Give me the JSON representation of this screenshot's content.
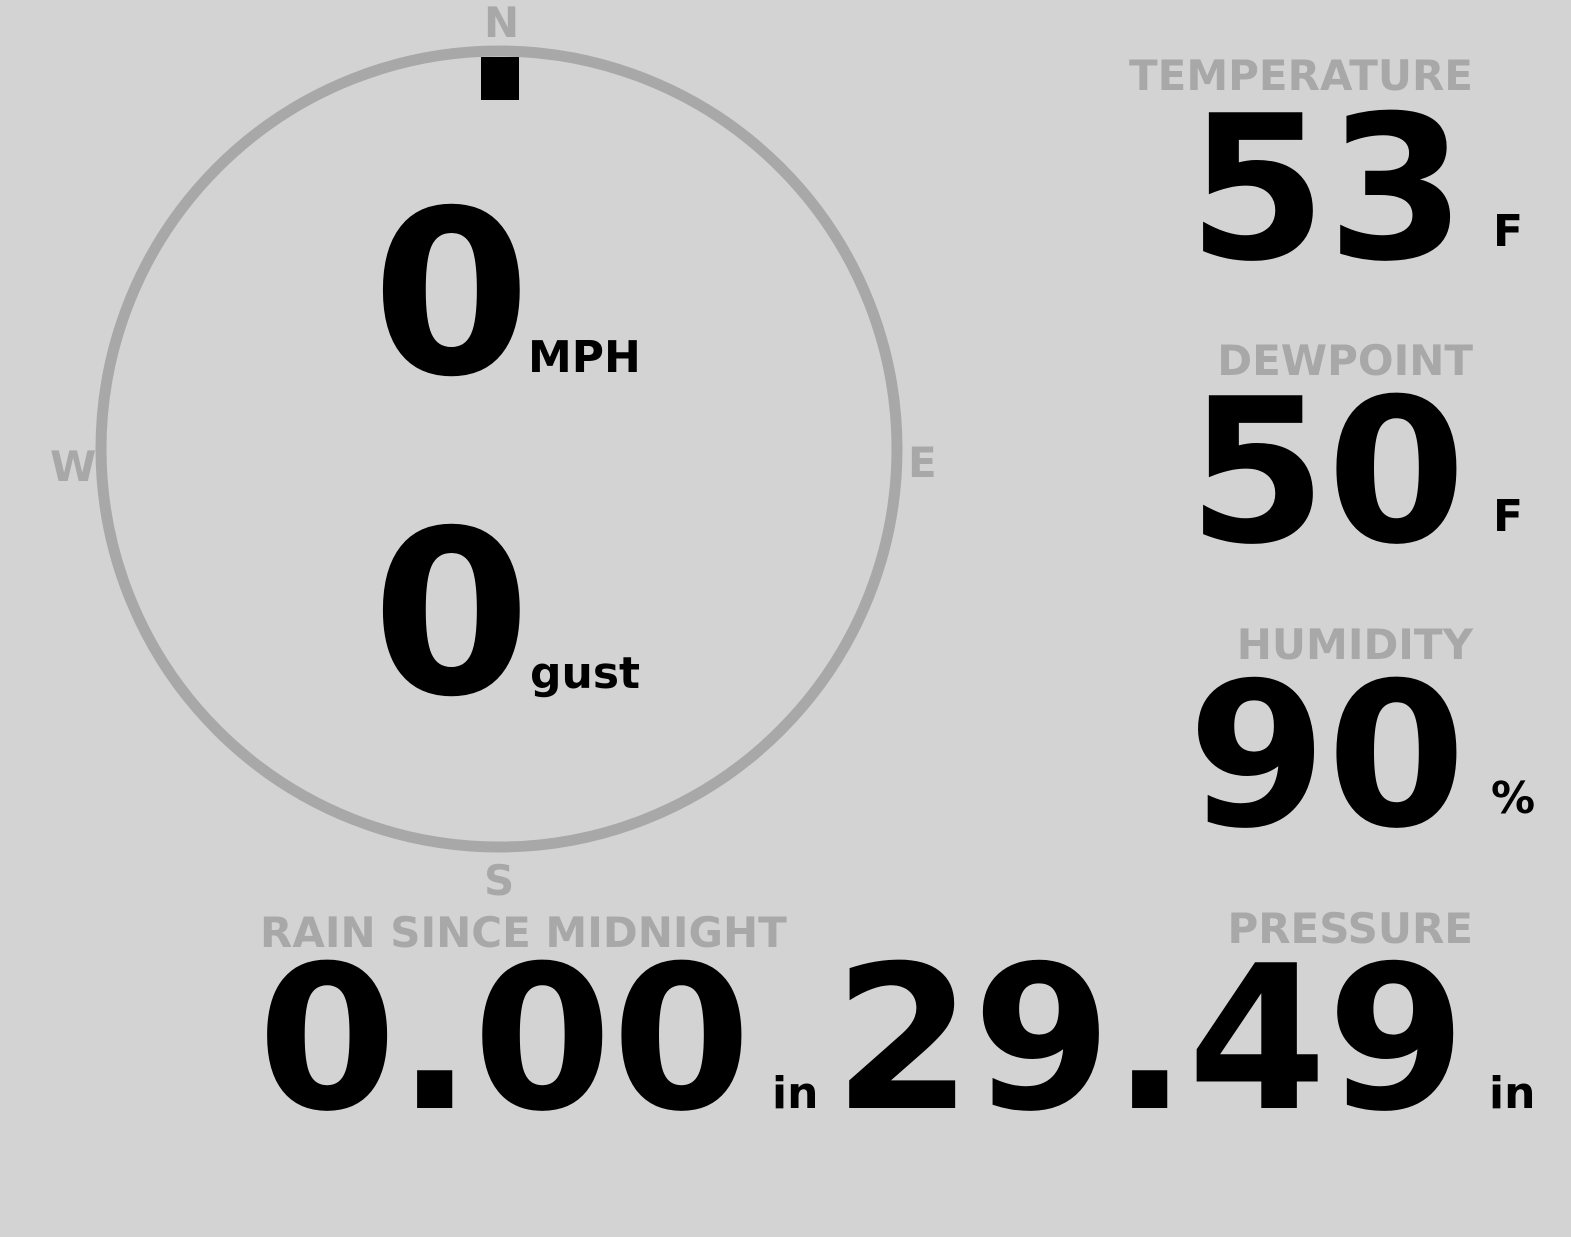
{
  "wind": {
    "compass": {
      "n": "N",
      "e": "E",
      "s": "S",
      "w": "W"
    },
    "direction_deg": 0,
    "speed": "0",
    "speed_unit": "MPH",
    "gust": "0",
    "gust_unit": "gust"
  },
  "temperature": {
    "label": "TEMPERATURE",
    "value": "53",
    "unit": "F"
  },
  "dewpoint": {
    "label": "DEWPOINT",
    "value": "50",
    "unit": "F"
  },
  "humidity": {
    "label": "HUMIDITY",
    "value": "90",
    "unit": "%"
  },
  "rain": {
    "label": "RAIN SINCE MIDNIGHT",
    "value": "0.00",
    "unit": "in"
  },
  "pressure": {
    "label": "PRESSURE",
    "value": "29.49",
    "unit": "in"
  },
  "colors": {
    "background": "#d3d3d3",
    "label": "#a8a8a8",
    "value": "#000000"
  }
}
